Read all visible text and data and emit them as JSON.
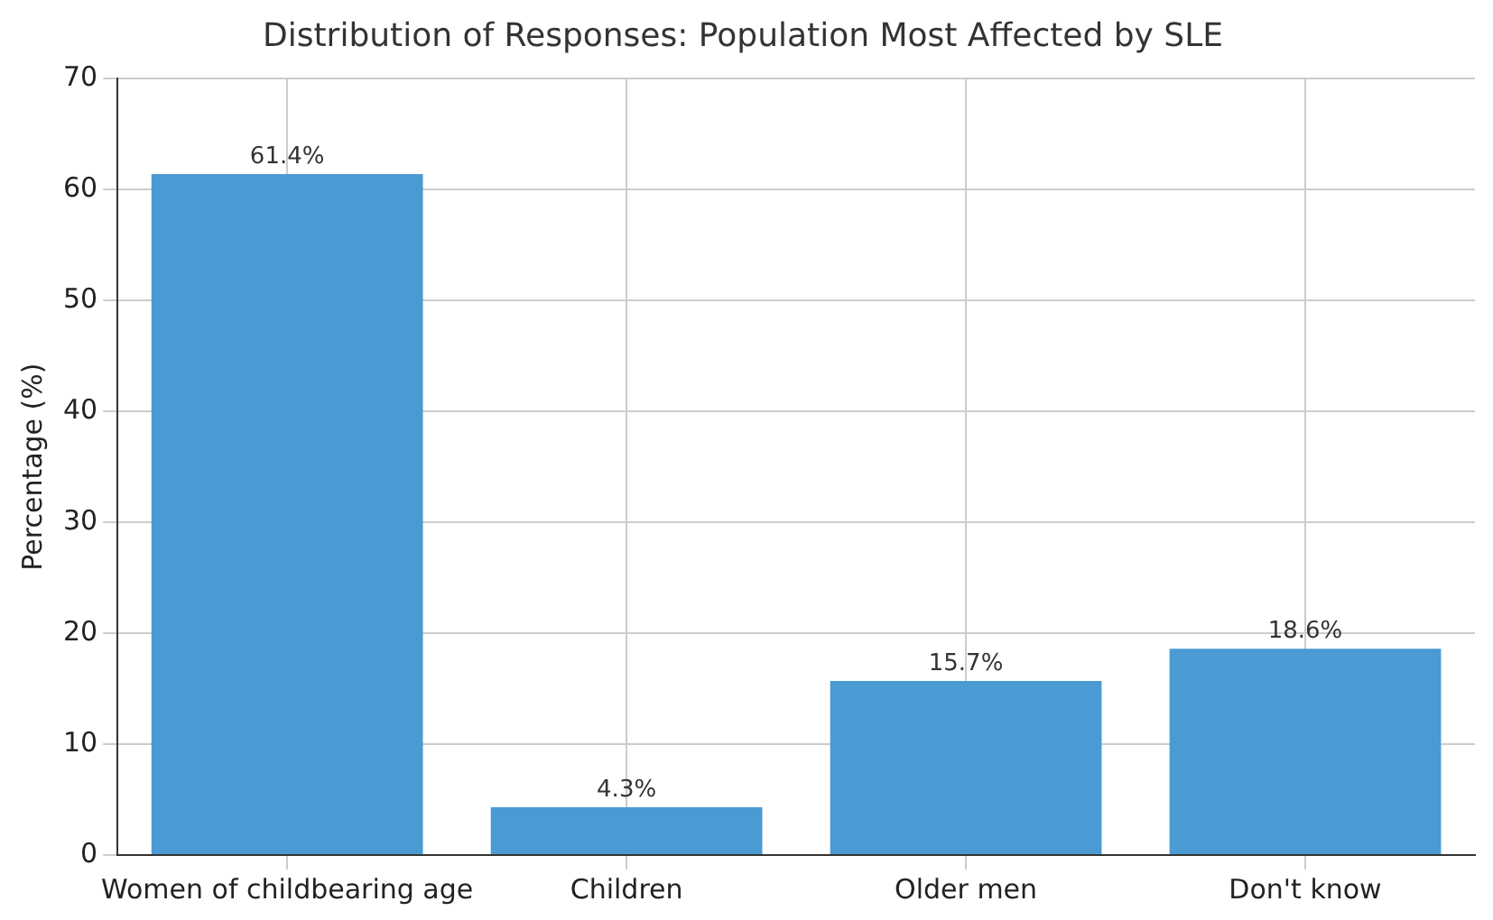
{
  "chart_data": {
    "type": "bar",
    "title": "Distribution of Responses: Population Most Affected by SLE",
    "ylabel": "Percentage (%)",
    "categories": [
      "Women of childbearing age",
      "Children",
      "Older men",
      "Don't know"
    ],
    "values": [
      61.4,
      4.3,
      15.7,
      18.6
    ],
    "color": "#4a9ad4",
    "value_labels": [
      "61.4%",
      "4.3%",
      "15.7%",
      "18.6%"
    ],
    "ylim": [
      0,
      70
    ],
    "yticks": [
      0,
      10,
      20,
      30,
      40,
      50,
      60,
      70
    ],
    "grid": true,
    "legend": false
  }
}
